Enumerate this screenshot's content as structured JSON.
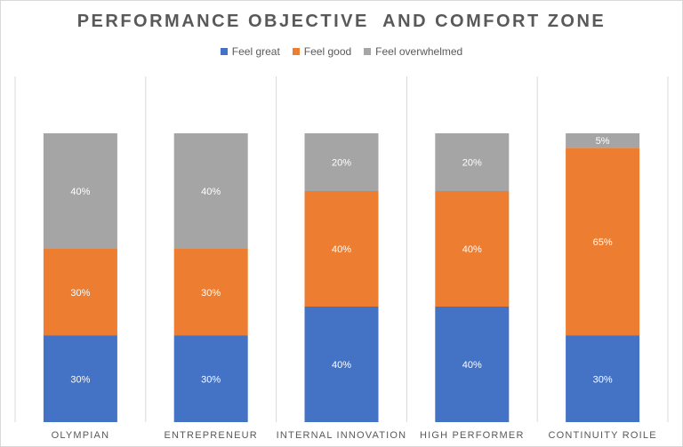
{
  "chart_data": {
    "type": "bar",
    "stacked": true,
    "title": "PERFORMANCE OBJECTIVE  AND COMFORT ZONE",
    "categories": [
      "OLYMPIAN",
      "ENTREPRENEUR",
      "INTERNAL INNOVATION",
      "HIGH PERFORMER",
      "CONTINUITY ROILE"
    ],
    "series": [
      {
        "name": "Feel great",
        "color": "#4472c4",
        "values": [
          30,
          30,
          40,
          40,
          30
        ],
        "labels": [
          "30%",
          "30%",
          "40%",
          "40%",
          "30%"
        ]
      },
      {
        "name": "Feel good",
        "color": "#ed7d31",
        "values": [
          30,
          30,
          40,
          40,
          65
        ],
        "labels": [
          "30%",
          "30%",
          "40%",
          "40%",
          "65%"
        ]
      },
      {
        "name": "Feel overwhelmed",
        "color": "#a5a5a5",
        "values": [
          40,
          40,
          20,
          20,
          5
        ],
        "labels": [
          "40%",
          "40%",
          "20%",
          "20%",
          "5%"
        ]
      }
    ],
    "ylim": [
      0,
      100
    ],
    "legend_position": "top",
    "category_separators": true,
    "gridlines": false
  }
}
